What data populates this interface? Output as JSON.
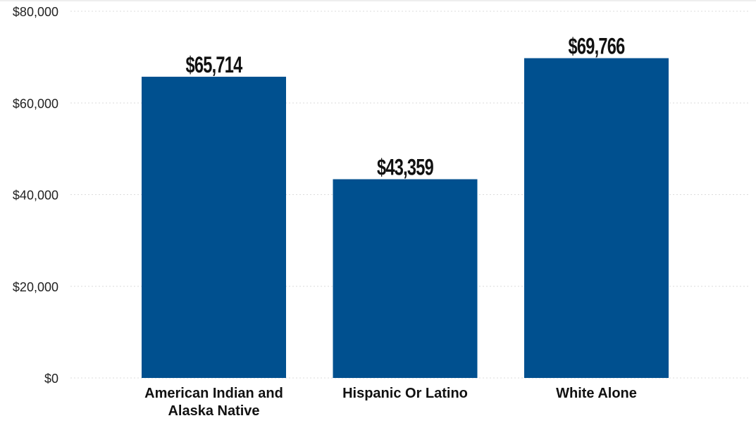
{
  "chart_data": {
    "type": "bar",
    "categories": [
      [
        "American Indian and",
        "Alaska Native"
      ],
      [
        "Hispanic Or Latino"
      ],
      [
        "White Alone"
      ]
    ],
    "values": [
      65714,
      43359,
      69766
    ],
    "data_labels": [
      "$65,714",
      "$43,359",
      "$69,766"
    ],
    "y_ticks": [
      0,
      20000,
      40000,
      60000,
      80000
    ],
    "y_tick_labels": [
      "$0",
      "$20,000",
      "$40,000",
      "$60,000",
      "$80,000"
    ],
    "ylim": [
      0,
      80000
    ],
    "grid": true,
    "legend": "none",
    "bar_color": "#00508f"
  }
}
